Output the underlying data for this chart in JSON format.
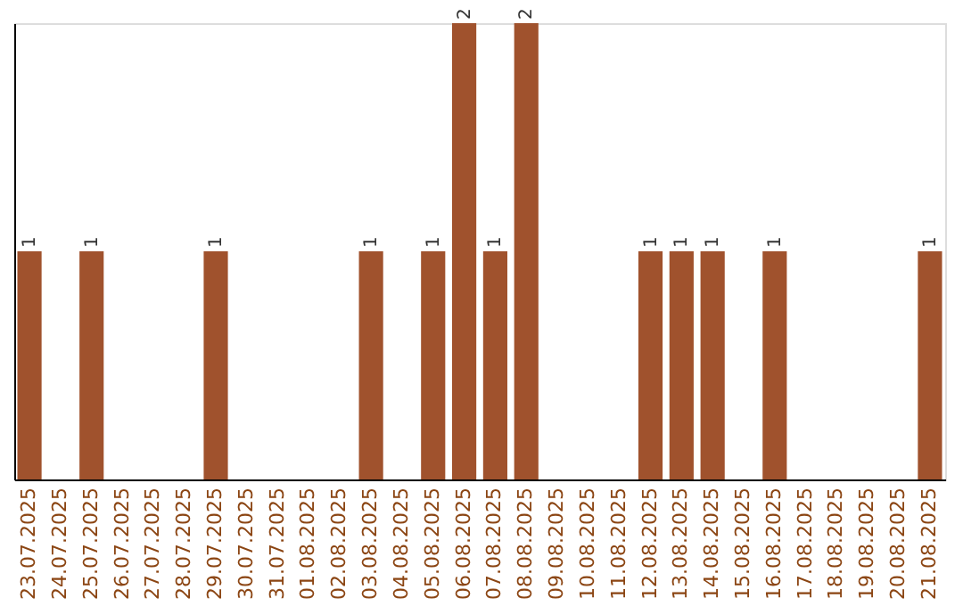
{
  "chart_data": {
    "type": "bar",
    "categories": [
      "23.07.2025",
      "24.07.2025",
      "25.07.2025",
      "26.07.2025",
      "27.07.2025",
      "28.07.2025",
      "29.07.2025",
      "30.07.2025",
      "31.07.2025",
      "01.08.2025",
      "02.08.2025",
      "03.08.2025",
      "04.08.2025",
      "05.08.2025",
      "06.08.2025",
      "07.08.2025",
      "08.08.2025",
      "09.08.2025",
      "10.08.2025",
      "11.08.2025",
      "12.08.2025",
      "13.08.2025",
      "14.08.2025",
      "15.08.2025",
      "16.08.2025",
      "17.08.2025",
      "18.08.2025",
      "19.08.2025",
      "20.08.2025",
      "21.08.2025"
    ],
    "values": [
      1,
      0,
      1,
      0,
      0,
      0,
      1,
      0,
      0,
      0,
      0,
      1,
      0,
      1,
      2,
      1,
      2,
      0,
      0,
      0,
      1,
      1,
      1,
      0,
      1,
      0,
      0,
      0,
      0,
      1
    ],
    "value_labels": [
      "1",
      null,
      "1",
      null,
      null,
      null,
      "1",
      null,
      null,
      null,
      null,
      "1",
      null,
      "1",
      "2",
      "1",
      "2",
      null,
      null,
      null,
      "1",
      "1",
      "1",
      null,
      "1",
      null,
      null,
      null,
      null,
      "1"
    ],
    "color": "#a0522d",
    "ylim": [
      0,
      2
    ],
    "tick_labels": "x",
    "grid": false
  }
}
